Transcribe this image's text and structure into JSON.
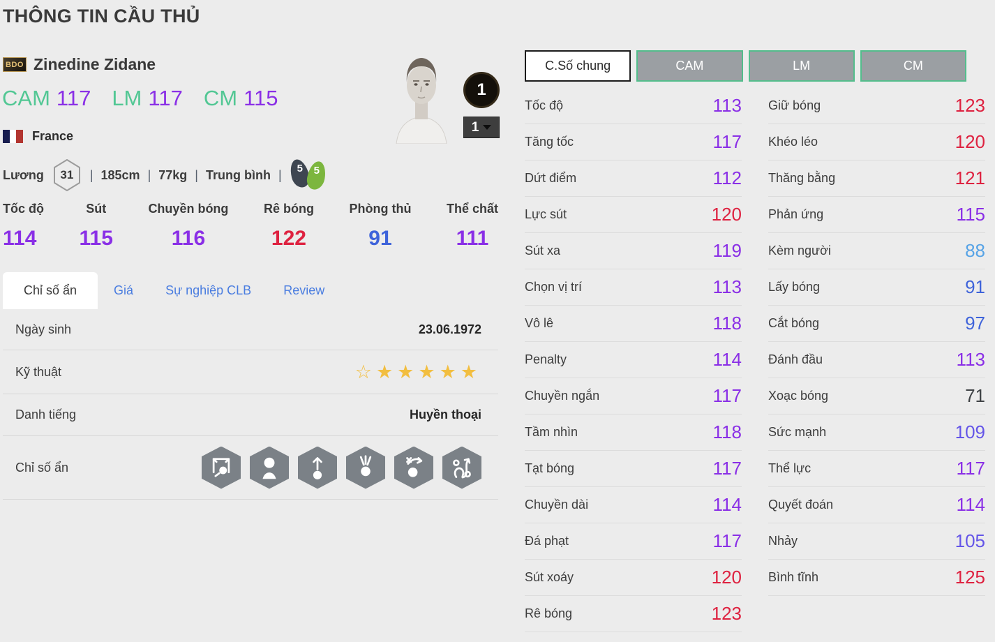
{
  "page": {
    "title": "THÔNG TIN CẦU THỦ"
  },
  "ui": {
    "sep": "|"
  },
  "colors": {
    "purple": "#8a2fe6",
    "violet": "#6455e8",
    "red": "#de2240",
    "blue": "#3e63da",
    "lightblue": "#57a3e6",
    "dark": "#3f4245",
    "green": "#52c794",
    "star_gold": "#f2be40",
    "tab_blue": "#4a7de0",
    "button_green_border": "#54bd8c"
  },
  "player": {
    "badge": "BDO",
    "name": "Zinedine Zidane",
    "positions": [
      {
        "pos": "CAM",
        "rating": "117"
      },
      {
        "pos": "LM",
        "rating": "117"
      },
      {
        "pos": "CM",
        "rating": "115"
      }
    ],
    "nation": "France",
    "salary_label": "Lương",
    "salary": "31",
    "height": "185cm",
    "weight": "77kg",
    "form": "Trung bình",
    "boots": [
      "5",
      "5"
    ],
    "card_level": "1",
    "level_select": "1"
  },
  "summary_stats": [
    {
      "label": "Tốc độ",
      "value": "114",
      "color": "purple"
    },
    {
      "label": "Sút",
      "value": "115",
      "color": "purple"
    },
    {
      "label": "Chuyền bóng",
      "value": "116",
      "color": "purple"
    },
    {
      "label": "Rê bóng",
      "value": "122",
      "color": "red"
    },
    {
      "label": "Phòng thủ",
      "value": "91",
      "color": "blue"
    },
    {
      "label": "Thể chất",
      "value": "111",
      "color": "purple"
    }
  ],
  "tabs": [
    {
      "label": "Chỉ số ẩn",
      "active": true
    },
    {
      "label": "Giá",
      "active": false
    },
    {
      "label": "Sự nghiệp CLB",
      "active": false
    },
    {
      "label": "Review",
      "active": false
    }
  ],
  "info": {
    "dob_label": "Ngày sinh",
    "dob": "23.06.1972",
    "skill_label": "Kỹ thuật",
    "skill_stars": {
      "outline": 1,
      "filled": 5
    },
    "fame_label": "Danh tiếng",
    "fame": "Huyền thoại",
    "hidden_label": "Chỉ số ẩn",
    "trait_icons": [
      "goal-shot",
      "header",
      "power-through",
      "lob-ball",
      "tactics",
      "dribble-weave"
    ]
  },
  "detail": {
    "view_buttons": [
      {
        "label": "C.Số chung",
        "active": true
      },
      {
        "label": "CAM",
        "active": false
      },
      {
        "label": "LM",
        "active": false
      },
      {
        "label": "CM",
        "active": false
      }
    ],
    "columns": [
      {
        "rows": [
          {
            "label": "Tốc độ",
            "value": "113",
            "color": "purple"
          },
          {
            "label": "Tăng tốc",
            "value": "117",
            "color": "purple"
          },
          {
            "label": "Dứt điểm",
            "value": "112",
            "color": "purple"
          },
          {
            "label": "Lực sút",
            "value": "120",
            "color": "red"
          },
          {
            "label": "Sút xa",
            "value": "119",
            "color": "purple"
          },
          {
            "label": "Chọn vị trí",
            "value": "113",
            "color": "purple"
          },
          {
            "label": "Vô lê",
            "value": "118",
            "color": "purple"
          },
          {
            "label": "Penalty",
            "value": "114",
            "color": "purple"
          },
          {
            "label": "Chuyền ngắn",
            "value": "117",
            "color": "purple"
          },
          {
            "label": "Tầm nhìn",
            "value": "118",
            "color": "purple"
          },
          {
            "label": "Tạt bóng",
            "value": "117",
            "color": "purple"
          },
          {
            "label": "Chuyền dài",
            "value": "114",
            "color": "purple"
          },
          {
            "label": "Đá phạt",
            "value": "117",
            "color": "purple"
          },
          {
            "label": "Sút xoáy",
            "value": "120",
            "color": "red"
          },
          {
            "label": "Rê bóng",
            "value": "123",
            "color": "red"
          }
        ]
      },
      {
        "rows": [
          {
            "label": "Giữ bóng",
            "value": "123",
            "color": "red"
          },
          {
            "label": "Khéo léo",
            "value": "120",
            "color": "red"
          },
          {
            "label": "Thăng bằng",
            "value": "121",
            "color": "red"
          },
          {
            "label": "Phản ứng",
            "value": "115",
            "color": "purple"
          },
          {
            "label": "Kèm người",
            "value": "88",
            "color": "lightblue"
          },
          {
            "label": "Lấy bóng",
            "value": "91",
            "color": "blue"
          },
          {
            "label": "Cắt bóng",
            "value": "97",
            "color": "blue"
          },
          {
            "label": "Đánh đầu",
            "value": "113",
            "color": "purple"
          },
          {
            "label": "Xoạc bóng",
            "value": "71",
            "color": "dark"
          },
          {
            "label": "Sức mạnh",
            "value": "109",
            "color": "violet"
          },
          {
            "label": "Thể lực",
            "value": "117",
            "color": "purple"
          },
          {
            "label": "Quyết đoán",
            "value": "114",
            "color": "purple"
          },
          {
            "label": "Nhảy",
            "value": "105",
            "color": "violet"
          },
          {
            "label": "Bình tĩnh",
            "value": "125",
            "color": "red"
          }
        ]
      }
    ]
  }
}
